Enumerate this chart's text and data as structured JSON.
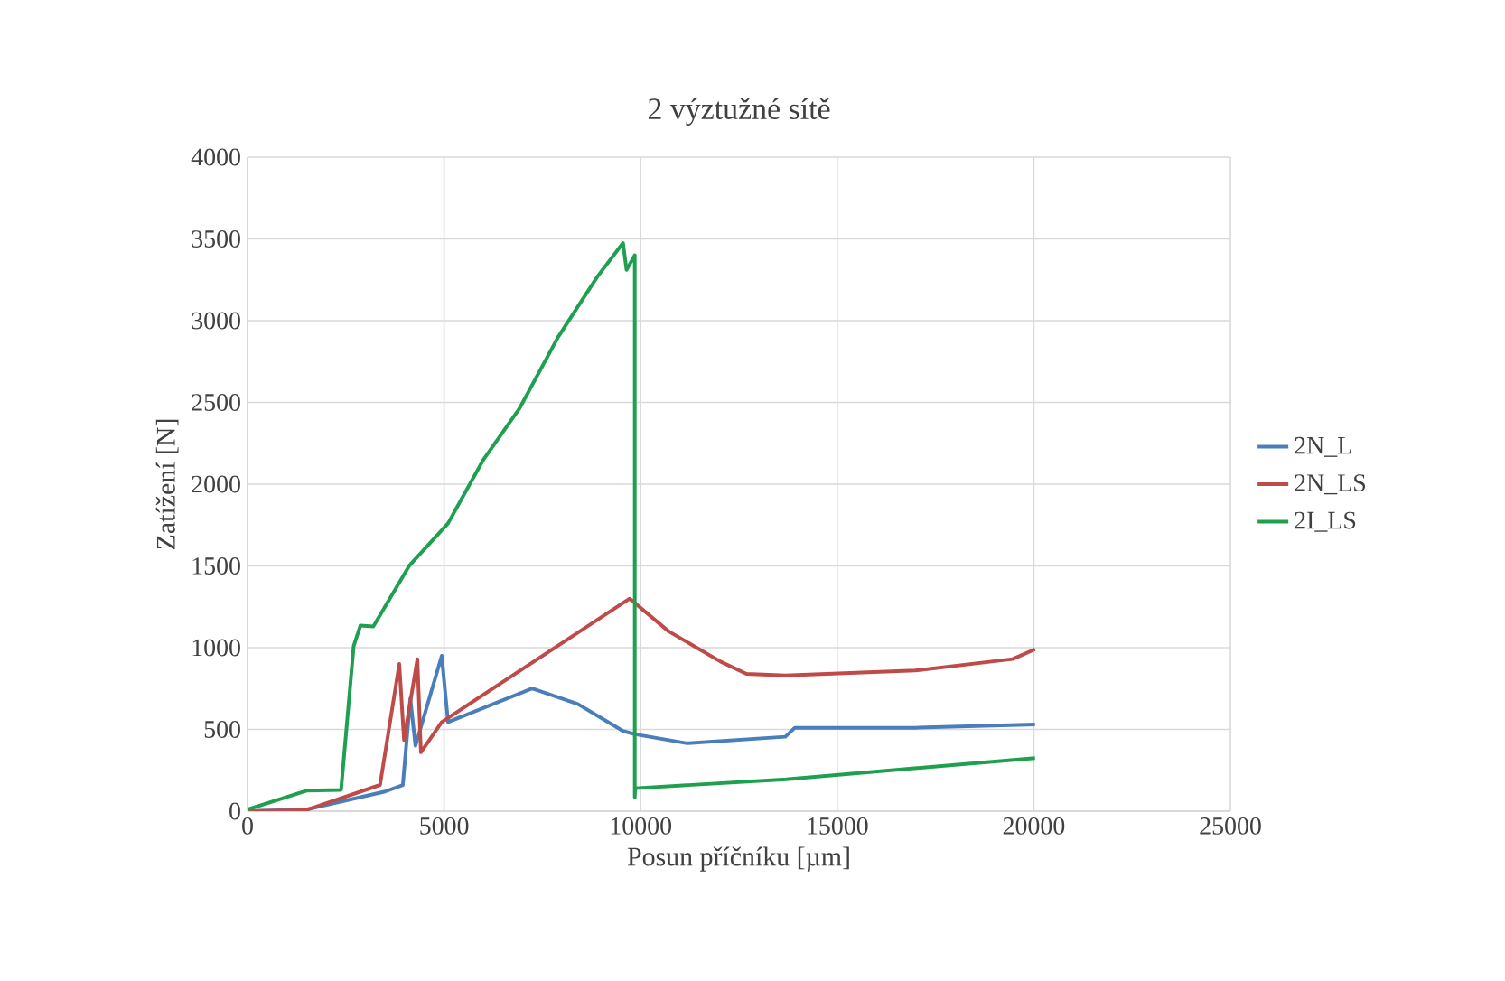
{
  "chart_data": {
    "type": "line",
    "title": "2 výztužné sítě",
    "xlabel": "Posun příčníku [µm]",
    "ylabel": "Zatížení [N]",
    "xlim": [
      0,
      25000
    ],
    "ylim": [
      0,
      4000
    ],
    "xticks": [
      0,
      5000,
      10000,
      15000,
      20000,
      25000
    ],
    "yticks": [
      0,
      500,
      1000,
      1500,
      2000,
      2500,
      3000,
      3500,
      4000
    ],
    "grid": true,
    "legend": "right",
    "marker": "none",
    "line_style": "solid",
    "series": [
      {
        "name": "2N_L",
        "color": "#4a7ebb",
        "x": [
          0,
          1500,
          3500,
          3950,
          4140,
          4270,
          4940,
          5100,
          6250,
          7240,
          8400,
          9550,
          9860,
          11180,
          13680,
          13920,
          16980,
          20030
        ],
        "values": [
          0,
          10,
          120,
          160,
          690,
          400,
          950,
          545,
          655,
          750,
          655,
          490,
          470,
          415,
          455,
          510,
          510,
          530
        ]
      },
      {
        "name": "2N_LS",
        "color": "#be4b48",
        "x": [
          0,
          1470,
          3370,
          3860,
          3980,
          4320,
          4410,
          4940,
          9720,
          10710,
          12030,
          12690,
          13680,
          16980,
          19460,
          20030
        ],
        "values": [
          0,
          5,
          160,
          900,
          435,
          930,
          360,
          545,
          1300,
          1100,
          915,
          840,
          830,
          860,
          930,
          990
        ]
      },
      {
        "name": "2I_LS",
        "color": "#1fa050",
        "x": [
          0,
          1500,
          2380,
          2700,
          2870,
          3200,
          4110,
          5100,
          6000,
          6910,
          7900,
          8900,
          9550,
          9640,
          9850,
          9850,
          9860,
          13700,
          20030
        ],
        "values": [
          10,
          125,
          130,
          1010,
          1135,
          1130,
          1500,
          1760,
          2150,
          2460,
          2900,
          3270,
          3475,
          3310,
          3400,
          85,
          140,
          195,
          325
        ]
      }
    ]
  }
}
